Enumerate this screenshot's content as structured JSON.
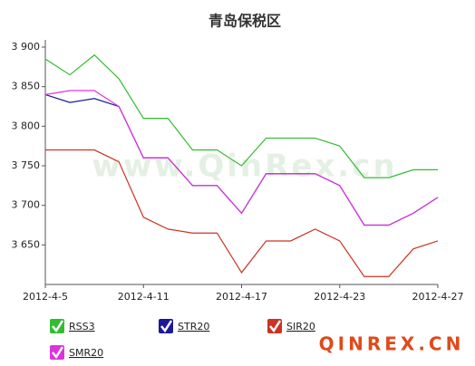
{
  "chart_data": {
    "type": "line",
    "title": "青岛保税区",
    "watermark": "www.QinRex.cn",
    "logo": "QINREX.CN",
    "categories": [
      "2012-4-5",
      null,
      null,
      null,
      "2012-4-11",
      null,
      null,
      null,
      "2012-4-17",
      null,
      null,
      null,
      "2012-4-23",
      null,
      null,
      null,
      "2012-4-27"
    ],
    "series": [
      {
        "name": "RSS3",
        "color": "#33bb33",
        "values": [
          3885,
          3865,
          3890,
          3860,
          3810,
          3810,
          3770,
          3770,
          3750,
          3785,
          3785,
          3785,
          3775,
          3735,
          3735,
          3745,
          3745
        ]
      },
      {
        "name": "STR20",
        "color": "#1a1a99",
        "values": [
          3840,
          3830,
          3835,
          3825,
          3760,
          3760,
          3725,
          3725,
          3690,
          3740,
          3740,
          3740,
          3725,
          3675,
          3675,
          3690,
          3710
        ]
      },
      {
        "name": "SIR20",
        "color": "#cc3322",
        "values": [
          3770,
          3770,
          3770,
          3755,
          3685,
          3670,
          3665,
          3665,
          3615,
          3655,
          3655,
          3670,
          3655,
          3610,
          3610,
          3645,
          3655
        ]
      },
      {
        "name": "SMR20",
        "color": "#dd33dd",
        "values": [
          3840,
          3845,
          3845,
          3825,
          3760,
          3760,
          3725,
          3725,
          3690,
          3740,
          3740,
          3740,
          3725,
          3675,
          3675,
          3690,
          3710
        ]
      }
    ],
    "ylim": [
      3600,
      3900
    ],
    "yticks": [
      {
        "value": 3650,
        "label": "3 650"
      },
      {
        "value": 3700,
        "label": "3 700"
      },
      {
        "value": 3750,
        "label": "3 750"
      },
      {
        "value": 3800,
        "label": "3 800"
      },
      {
        "value": 3850,
        "label": "3 850"
      },
      {
        "value": 3900,
        "label": "3 900"
      }
    ],
    "grid": false
  }
}
